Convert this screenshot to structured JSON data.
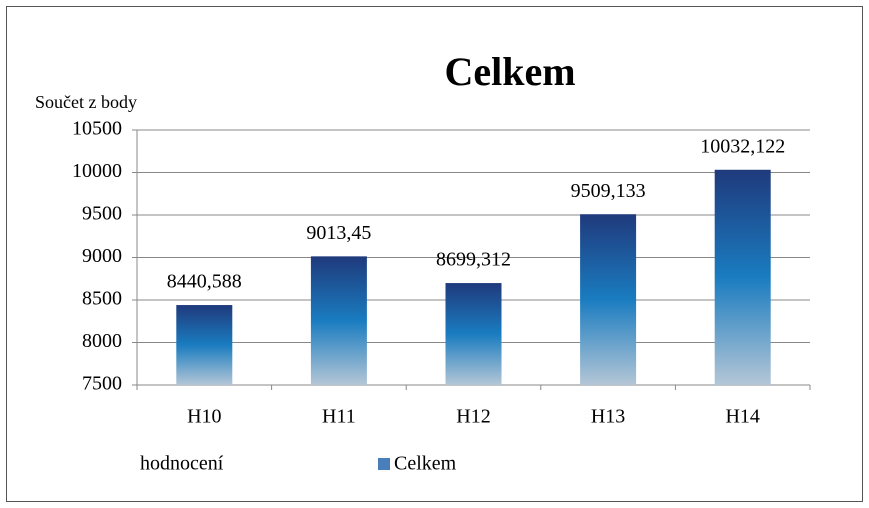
{
  "chart_data": {
    "type": "bar",
    "title": "Celkem",
    "ylabel": "Součet z body",
    "xlabel": "hodnocení",
    "categories": [
      "H10",
      "H11",
      "H12",
      "H13",
      "H14"
    ],
    "series": [
      {
        "name": "Celkem",
        "color": "#4a7ebb",
        "values": [
          8440.588,
          9013.45,
          8699.312,
          9509.133,
          10032.122
        ],
        "value_labels": [
          "8440,588",
          "9013,45",
          "8699,312",
          "9509,133",
          "10032,122"
        ]
      }
    ],
    "ylim": [
      7500,
      10500
    ],
    "yticks": [
      7500,
      8000,
      8500,
      9000,
      9500,
      10000,
      10500
    ],
    "grid": true
  }
}
